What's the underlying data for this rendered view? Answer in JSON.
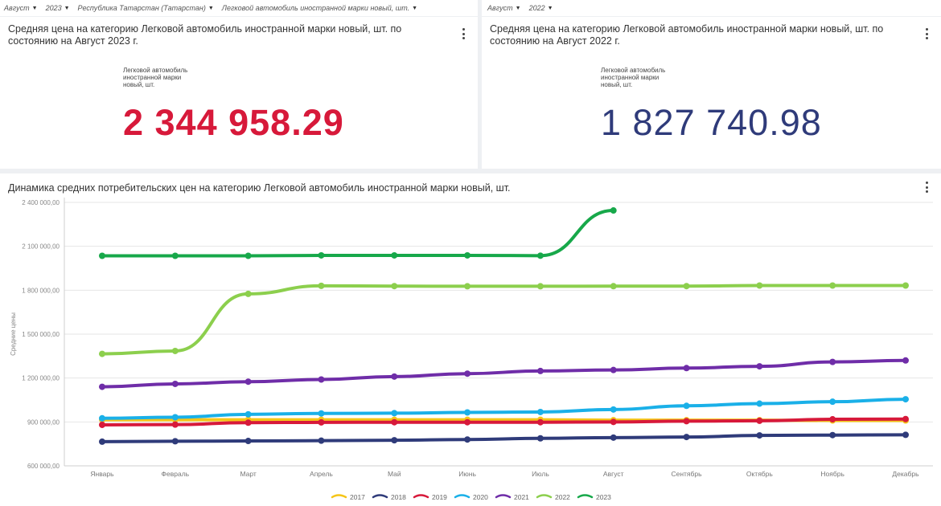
{
  "filters_left": [
    "Август",
    "2023",
    "Республика Татарстан (Татарстан)",
    "Легковой автомобиль иностранной марки новый, шт."
  ],
  "filters_right": [
    "Август",
    "2022"
  ],
  "kpi_left": {
    "title": "Средняя цена на категорию Легковой автомобиль иностранной марки новый, шт. по состоянию на Август 2023 г.",
    "label": "Легковой автомобиль иностранной марки новый, шт.",
    "value": "2 344 958.29",
    "color": "#d7193a"
  },
  "kpi_right": {
    "title": "Средняя цена на категорию Легковой автомобиль иностранной марки новый, шт. по состоянию на Август 2022 г.",
    "label": "Легковой автомобиль иностранной марки новый, шт.",
    "value": "1 827 740.98",
    "color": "#2f3b7a"
  },
  "icons": {
    "kebab": "more-vert-icon",
    "caret": "caret-down-icon"
  },
  "chart_data": {
    "type": "line",
    "title": "Динамика средних потребительских цен на категорию Легковой автомобиль иностранной марки новый, шт.",
    "ylabel": "Средние цены",
    "xlabel": "",
    "ylim": [
      600000,
      2400000
    ],
    "yticks": [
      600000,
      900000,
      1200000,
      1500000,
      1800000,
      2100000,
      2400000
    ],
    "ytick_labels": [
      "600 000,00",
      "900 000,00",
      "1 200 000,00",
      "1 500 000,00",
      "1 800 000,00",
      "2 100 000,00",
      "2 400 000,00"
    ],
    "categories": [
      "Январь",
      "Февраль",
      "Март",
      "Апрель",
      "Май",
      "Июнь",
      "Июль",
      "Август",
      "Сентябрь",
      "Октябрь",
      "Ноябрь",
      "Декабрь"
    ],
    "grid": "horizontal",
    "legend": "bottom",
    "series": [
      {
        "name": "2017",
        "color": "#f5c518",
        "values": [
          915000,
          915000,
          915000,
          915000,
          915000,
          915000,
          915000,
          912000,
          912000,
          912000,
          910000,
          910000
        ]
      },
      {
        "name": "2018",
        "color": "#2f3b7a",
        "values": [
          765000,
          768000,
          770000,
          772000,
          775000,
          780000,
          788000,
          793000,
          797000,
          808000,
          810000,
          812000
        ]
      },
      {
        "name": "2019",
        "color": "#d7193a",
        "values": [
          880000,
          882000,
          895000,
          897000,
          898000,
          898000,
          898000,
          900000,
          905000,
          908000,
          918000,
          920000
        ]
      },
      {
        "name": "2020",
        "color": "#1ab0e8",
        "values": [
          925000,
          932000,
          952000,
          958000,
          960000,
          965000,
          968000,
          985000,
          1010000,
          1025000,
          1038000,
          1055000
        ]
      },
      {
        "name": "2021",
        "color": "#6f2da8",
        "values": [
          1140000,
          1160000,
          1175000,
          1190000,
          1210000,
          1230000,
          1248000,
          1255000,
          1268000,
          1280000,
          1310000,
          1320000
        ]
      },
      {
        "name": "2022",
        "color": "#8ccf4d",
        "values": [
          1365000,
          1385000,
          1775000,
          1830000,
          1828000,
          1827000,
          1827000,
          1827741,
          1828000,
          1832000,
          1832000,
          1832000
        ]
      },
      {
        "name": "2023",
        "color": "#17a84a",
        "values": [
          2035000,
          2035000,
          2035000,
          2038000,
          2038000,
          2038000,
          2036000,
          2344958,
          null,
          null,
          null,
          null
        ]
      }
    ]
  }
}
